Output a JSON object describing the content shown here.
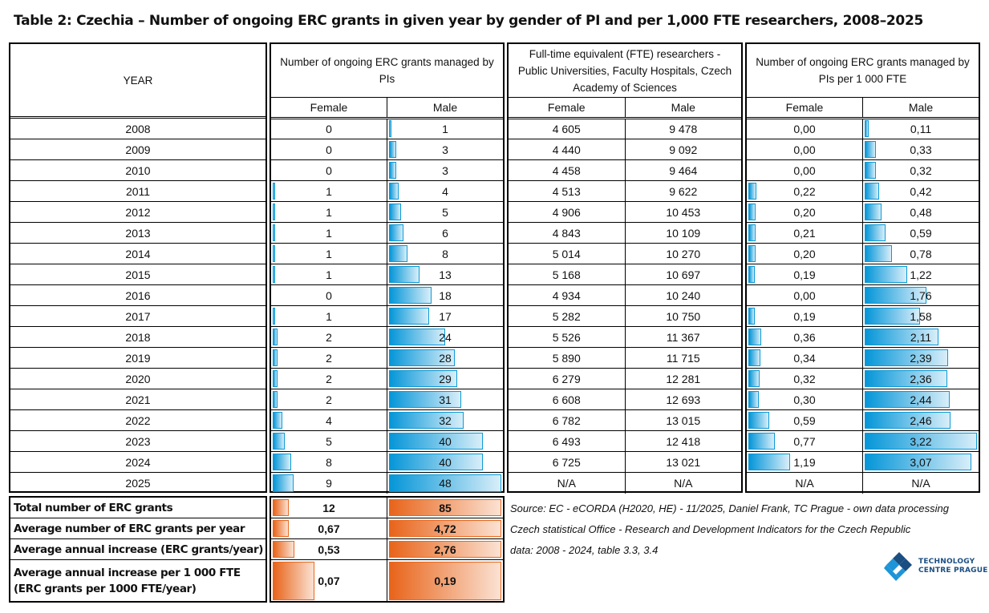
{
  "title": "Table 2: Czechia – Number of ongoing ERC grants in given year by gender of PI and per 1,000 FTE researchers, 2008–2025",
  "headers": {
    "year": "YEAR",
    "grants": "Number of ongoing ERC grants managed by PIs",
    "fte": "Full-time equivalent (FTE) researchers  - Public Universities, Faculty Hospitals, Czech Academy of Sciences",
    "per_fte": "Number of ongoing ERC grants managed by PIs per 1 000 FTE",
    "female": "Female",
    "male": "Male"
  },
  "colors": {
    "blue_bar": "#0596d8",
    "orange_bar": "#e8641a"
  },
  "rows": [
    {
      "year": "2008",
      "gf": "0",
      "gm": "1",
      "ff": "4 605",
      "fm": "9 478",
      "pf": "0,00",
      "pm": "0,11"
    },
    {
      "year": "2009",
      "gf": "0",
      "gm": "3",
      "ff": "4 440",
      "fm": "9 092",
      "pf": "0,00",
      "pm": "0,33"
    },
    {
      "year": "2010",
      "gf": "0",
      "gm": "3",
      "ff": "4 458",
      "fm": "9 464",
      "pf": "0,00",
      "pm": "0,32"
    },
    {
      "year": "2011",
      "gf": "1",
      "gm": "4",
      "ff": "4 513",
      "fm": "9 622",
      "pf": "0,22",
      "pm": "0,42"
    },
    {
      "year": "2012",
      "gf": "1",
      "gm": "5",
      "ff": "4 906",
      "fm": "10 453",
      "pf": "0,20",
      "pm": "0,48"
    },
    {
      "year": "2013",
      "gf": "1",
      "gm": "6",
      "ff": "4 843",
      "fm": "10 109",
      "pf": "0,21",
      "pm": "0,59"
    },
    {
      "year": "2014",
      "gf": "1",
      "gm": "8",
      "ff": "5 014",
      "fm": "10 270",
      "pf": "0,20",
      "pm": "0,78"
    },
    {
      "year": "2015",
      "gf": "1",
      "gm": "13",
      "ff": "5 168",
      "fm": "10 697",
      "pf": "0,19",
      "pm": "1,22"
    },
    {
      "year": "2016",
      "gf": "0",
      "gm": "18",
      "ff": "4 934",
      "fm": "10 240",
      "pf": "0,00",
      "pm": "1,76"
    },
    {
      "year": "2017",
      "gf": "1",
      "gm": "17",
      "ff": "5 282",
      "fm": "10 750",
      "pf": "0,19",
      "pm": "1,58"
    },
    {
      "year": "2018",
      "gf": "2",
      "gm": "24",
      "ff": "5 526",
      "fm": "11 367",
      "pf": "0,36",
      "pm": "2,11"
    },
    {
      "year": "2019",
      "gf": "2",
      "gm": "28",
      "ff": "5 890",
      "fm": "11 715",
      "pf": "0,34",
      "pm": "2,39"
    },
    {
      "year": "2020",
      "gf": "2",
      "gm": "29",
      "ff": "6 279",
      "fm": "12 281",
      "pf": "0,32",
      "pm": "2,36"
    },
    {
      "year": "2021",
      "gf": "2",
      "gm": "31",
      "ff": "6 608",
      "fm": "12 693",
      "pf": "0,30",
      "pm": "2,44"
    },
    {
      "year": "2022",
      "gf": "4",
      "gm": "32",
      "ff": "6 782",
      "fm": "13 015",
      "pf": "0,59",
      "pm": "2,46"
    },
    {
      "year": "2023",
      "gf": "5",
      "gm": "40",
      "ff": "6 493",
      "fm": "12 418",
      "pf": "0,77",
      "pm": "3,22"
    },
    {
      "year": "2024",
      "gf": "8",
      "gm": "40",
      "ff": "6 725",
      "fm": "13 021",
      "pf": "1,19",
      "pm": "3,07"
    },
    {
      "year": "2025",
      "gf": "9",
      "gm": "48",
      "ff": "N/A",
      "fm": "N/A",
      "pf": "N/A",
      "pm": "N/A"
    }
  ],
  "summary": [
    {
      "label": "Total number of ERC grants",
      "female": "12",
      "male": "85",
      "ffrac": 0.14,
      "mfrac": 1.0
    },
    {
      "label": "Average number of ERC grants per year",
      "female": "0,67",
      "male": "4,72",
      "ffrac": 0.14,
      "mfrac": 1.0
    },
    {
      "label": "Average annual increase (ERC grants/year)",
      "female": "0,53",
      "male": "2,76",
      "ffrac": 0.19,
      "mfrac": 1.0
    },
    {
      "label": "Average annual increase per 1 000 FTE (ERC grants per 1000 FTE/year)",
      "female": "0,07",
      "male": "0,19",
      "ffrac": 0.37,
      "mfrac": 1.0
    }
  ],
  "source": [
    "Source: EC - eCORDA (H2020, HE) - 11/2025, Daniel Frank, TC Prague - own data processing",
    "Czech statistical Office - Research and Development Indicators for the Czech Republic",
    "data: 2008 - 2024, table 3.3, 3.4"
  ],
  "logo": {
    "line1": "TECHNOLOGY",
    "line2": "CENTRE PRAGUE"
  }
}
